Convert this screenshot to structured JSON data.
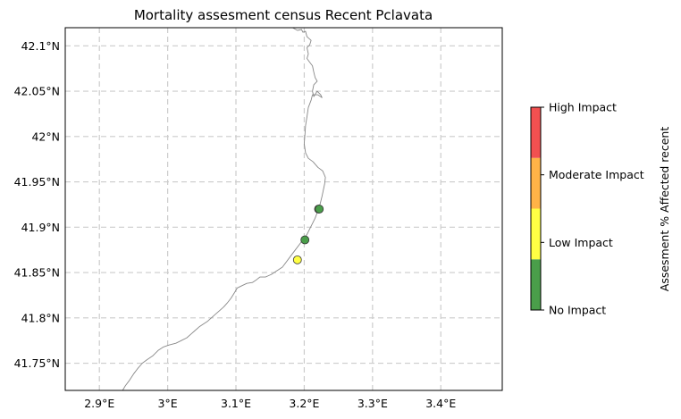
{
  "title": "Mortality assesment census Recent Pclavata",
  "map": {
    "lon_range": [
      2.85,
      3.49
    ],
    "lat_range": [
      41.72,
      42.12
    ],
    "x_ticks": [
      {
        "value": 2.9,
        "label": "2.9°E"
      },
      {
        "value": 3.0,
        "label": "3°E"
      },
      {
        "value": 3.1,
        "label": "3.1°E"
      },
      {
        "value": 3.2,
        "label": "3.2°E"
      },
      {
        "value": 3.3,
        "label": "3.3°E"
      },
      {
        "value": 3.4,
        "label": "3.4°E"
      }
    ],
    "y_ticks": [
      {
        "value": 42.1,
        "label": "42.1°N"
      },
      {
        "value": 42.05,
        "label": "42.05°N"
      },
      {
        "value": 42.0,
        "label": "42°N"
      },
      {
        "value": 41.95,
        "label": "41.95°N"
      },
      {
        "value": 41.9,
        "label": "41.9°N"
      },
      {
        "value": 41.85,
        "label": "41.85°N"
      },
      {
        "value": 41.8,
        "label": "41.8°N"
      },
      {
        "value": 41.75,
        "label": "41.75°N"
      }
    ],
    "grid": true,
    "grid_style": "dashed",
    "coastline_color": "#888888",
    "coastline": [
      [
        3.183,
        42.12
      ],
      [
        3.19,
        42.117
      ],
      [
        3.196,
        42.118
      ],
      [
        3.198,
        42.115
      ],
      [
        3.202,
        42.116
      ],
      [
        3.204,
        42.11
      ],
      [
        3.21,
        42.106
      ],
      [
        3.208,
        42.101
      ],
      [
        3.204,
        42.098
      ],
      [
        3.206,
        42.091
      ],
      [
        3.204,
        42.086
      ],
      [
        3.208,
        42.082
      ],
      [
        3.212,
        42.078
      ],
      [
        3.214,
        42.071
      ],
      [
        3.216,
        42.065
      ],
      [
        3.219,
        42.061
      ],
      [
        3.214,
        42.057
      ],
      [
        3.212,
        42.05
      ],
      [
        3.214,
        42.044
      ],
      [
        3.219,
        42.05
      ],
      [
        3.224,
        42.046
      ],
      [
        3.226,
        42.043
      ],
      [
        3.22,
        42.046
      ],
      [
        3.212,
        42.046
      ],
      [
        3.21,
        42.04
      ],
      [
        3.206,
        42.032
      ],
      [
        3.204,
        42.022
      ],
      [
        3.202,
        42.012
      ],
      [
        3.201,
        42.002
      ],
      [
        3.2,
        41.992
      ],
      [
        3.202,
        41.982
      ],
      [
        3.206,
        41.976
      ],
      [
        3.213,
        41.972
      ],
      [
        3.22,
        41.966
      ],
      [
        3.227,
        41.962
      ],
      [
        3.231,
        41.955
      ],
      [
        3.23,
        41.948
      ],
      [
        3.228,
        41.941
      ],
      [
        3.226,
        41.934
      ],
      [
        3.224,
        41.928
      ],
      [
        3.222,
        41.922
      ],
      [
        3.219,
        41.916
      ],
      [
        3.216,
        41.91
      ],
      [
        3.212,
        41.904
      ],
      [
        3.208,
        41.898
      ],
      [
        3.204,
        41.892
      ],
      [
        3.198,
        41.886
      ],
      [
        3.192,
        41.88
      ],
      [
        3.186,
        41.874
      ],
      [
        3.18,
        41.868
      ],
      [
        3.174,
        41.862
      ],
      [
        3.168,
        41.856
      ],
      [
        3.16,
        41.852
      ],
      [
        3.152,
        41.848
      ],
      [
        3.143,
        41.845
      ],
      [
        3.135,
        41.845
      ],
      [
        3.13,
        41.842
      ],
      [
        3.124,
        41.839
      ],
      [
        3.116,
        41.838
      ],
      [
        3.11,
        41.836
      ],
      [
        3.102,
        41.833
      ],
      [
        3.098,
        41.828
      ],
      [
        3.093,
        41.822
      ],
      [
        3.088,
        41.817
      ],
      [
        3.082,
        41.812
      ],
      [
        3.076,
        41.808
      ],
      [
        3.07,
        41.804
      ],
      [
        3.064,
        41.8
      ],
      [
        3.058,
        41.796
      ],
      [
        3.052,
        41.793
      ],
      [
        3.046,
        41.79
      ],
      [
        3.04,
        41.786
      ],
      [
        3.034,
        41.782
      ],
      [
        3.028,
        41.778
      ],
      [
        3.02,
        41.775
      ],
      [
        3.012,
        41.772
      ],
      [
        3.002,
        41.77
      ],
      [
        2.994,
        41.768
      ],
      [
        2.986,
        41.764
      ],
      [
        2.978,
        41.758
      ],
      [
        2.97,
        41.754
      ],
      [
        2.963,
        41.75
      ],
      [
        2.956,
        41.744
      ],
      [
        2.95,
        41.738
      ],
      [
        2.944,
        41.731
      ],
      [
        2.938,
        41.725
      ],
      [
        2.934,
        41.72
      ]
    ],
    "sites": [
      {
        "lon": 3.221,
        "lat": 41.92,
        "status": "Low Impact"
      },
      {
        "lon": 3.222,
        "lat": 41.92,
        "status": "No Impact"
      },
      {
        "lon": 3.201,
        "lat": 41.886,
        "status": "No Impact"
      },
      {
        "lon": 3.19,
        "lat": 41.864,
        "status": "Low Impact"
      }
    ]
  },
  "colorbar": {
    "label": "Assesment % Affected recent",
    "categories": [
      {
        "label": "No Impact",
        "color": "#4a9e4a"
      },
      {
        "label": "Low Impact",
        "color": "#ffff44"
      },
      {
        "label": "Moderate Impact",
        "color": "#ffb347"
      },
      {
        "label": "High Impact",
        "color": "#f25050"
      }
    ],
    "tick_labels": [
      "No Impact",
      "Low Impact",
      "Moderate Impact",
      "High Impact"
    ]
  }
}
